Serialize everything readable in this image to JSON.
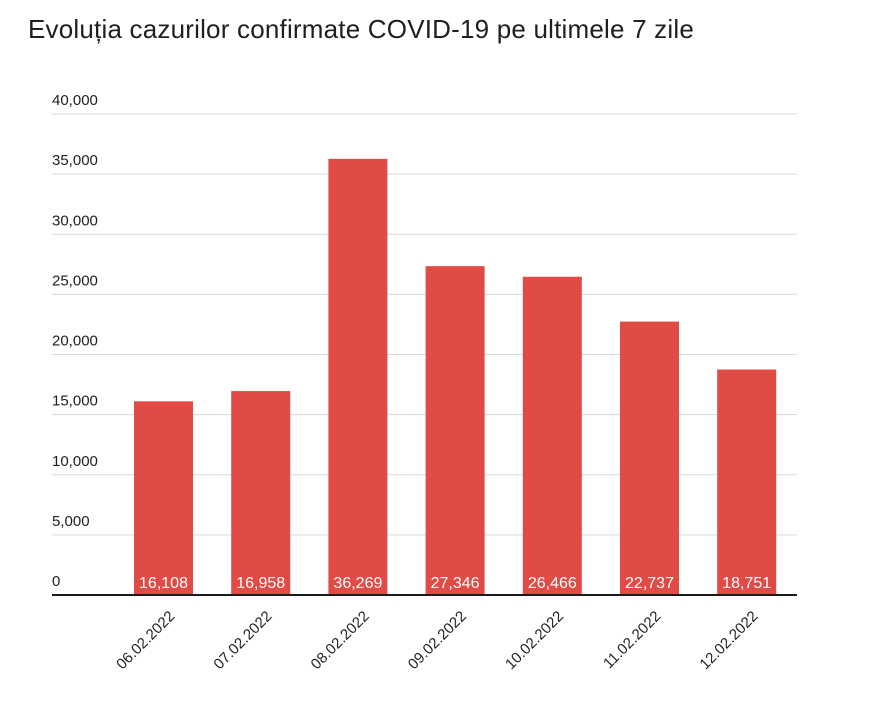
{
  "chart_data": {
    "type": "bar",
    "title": "Evoluția cazurilor confirmate COVID-19 pe ultimele 7 zile",
    "xlabel": "",
    "ylabel": "",
    "categories": [
      "06.02.2022",
      "07.02.2022",
      "08.02.2022",
      "09.02.2022",
      "10.02.2022",
      "11.02.2022",
      "12.02.2022"
    ],
    "values": [
      16108,
      16958,
      36269,
      27346,
      26466,
      22737,
      18751
    ],
    "data_labels": [
      "16,108",
      "16,958",
      "36,269",
      "27,346",
      "26,466",
      "22,737",
      "18,751"
    ],
    "ylim": [
      0,
      40000
    ],
    "y_ticks": [
      0,
      5000,
      10000,
      15000,
      20000,
      25000,
      30000,
      35000,
      40000
    ],
    "y_tick_labels": [
      "0",
      "5,000",
      "10,000",
      "15,000",
      "20,000",
      "25,000",
      "30,000",
      "35,000",
      "40,000"
    ],
    "grid": true,
    "legend": "none",
    "colors": {
      "bar": "#e04b45",
      "grid": "#d9d9d9",
      "axis": "#1a1a1a",
      "label_inside": "#ffffff"
    }
  }
}
